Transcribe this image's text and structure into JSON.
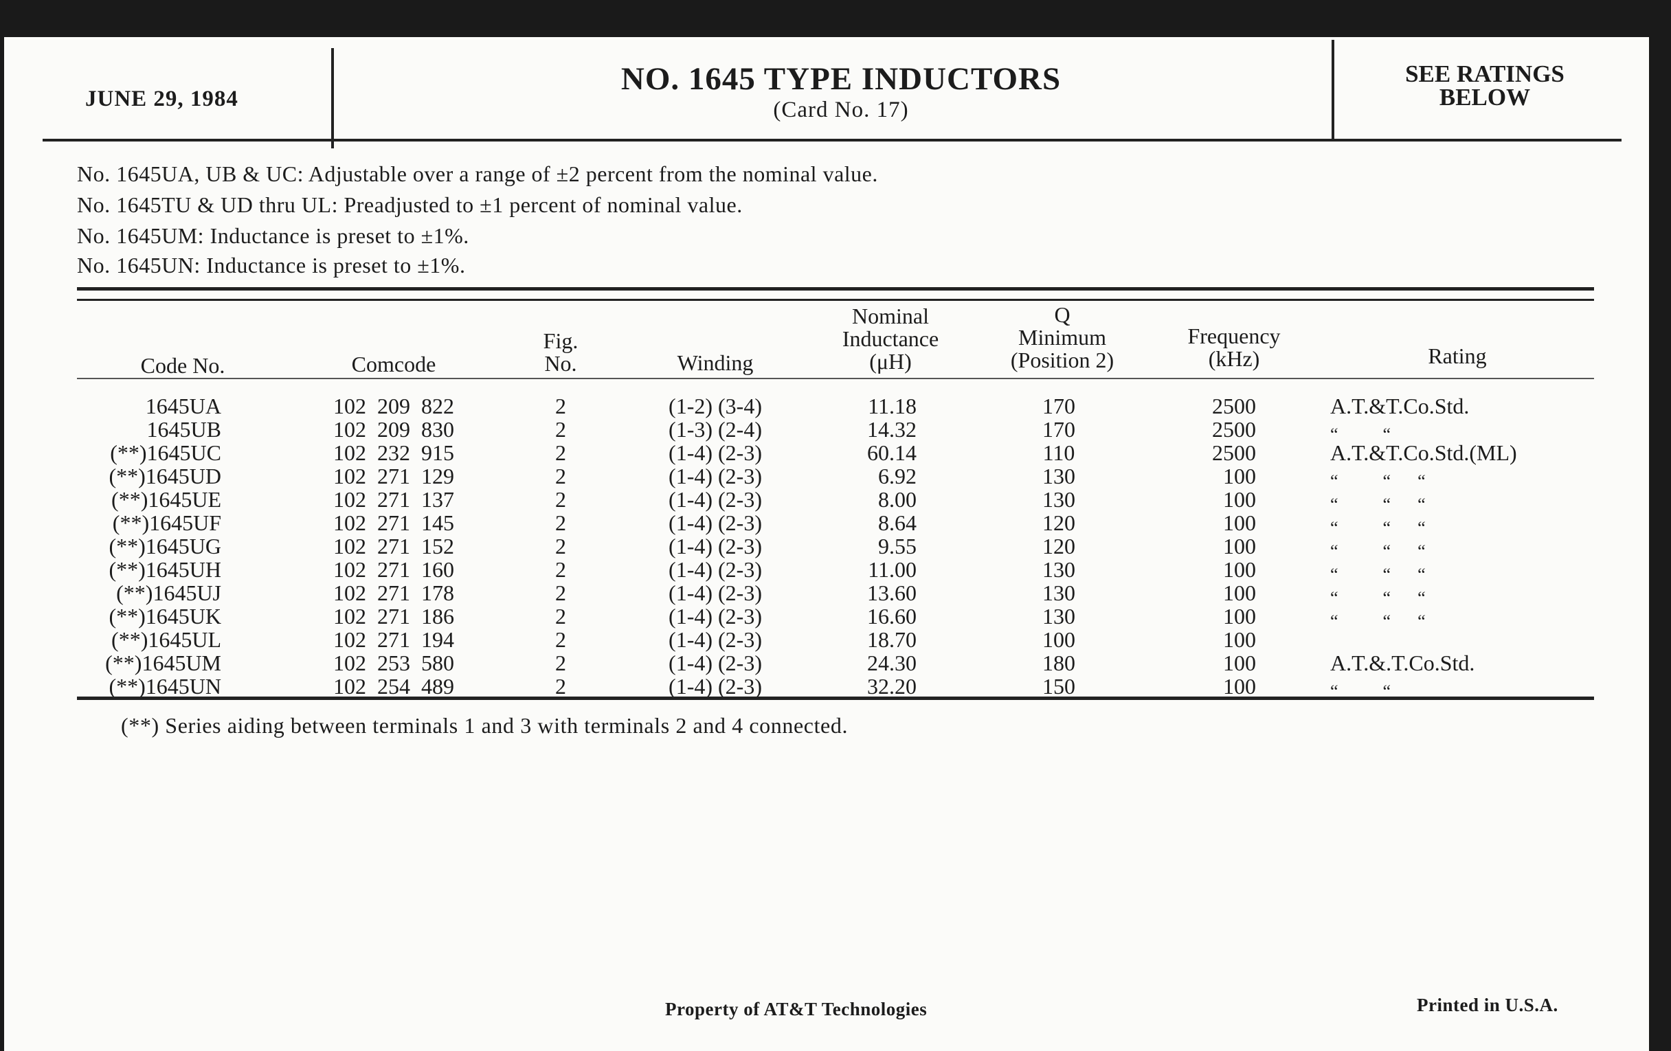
{
  "header": {
    "date": "JUNE 29, 1984",
    "title": "NO. 1645 TYPE INDUCTORS",
    "subtitle": "(Card No. 17)",
    "ratings_note_line1": "SEE RATINGS",
    "ratings_note_line2": "BELOW"
  },
  "notes": [
    "No. 1645UA, UB & UC: Adjustable over a range of ±2 percent from the nominal value.",
    "No. 1645TU & UD thru UL: Preadjusted to ±1 percent of nominal value.",
    "No. 1645UM:  Inductance is preset to ±1%.",
    "No. 1645UN: Inductance is preset to ±1%."
  ],
  "table": {
    "headers": {
      "code": "Code No.",
      "comcode": "Comcode",
      "fig_1": "Fig.",
      "fig_2": "No.",
      "winding": "Winding",
      "ind_1": "Nominal",
      "ind_2": "Inductance",
      "ind_3": "(μH)",
      "q_1": "Q",
      "q_2": "Minimum",
      "q_3": "(Position 2)",
      "freq_1": "Frequency",
      "freq_2": "(kHz)",
      "rating": "Rating"
    },
    "rows": [
      {
        "code": "1645UA",
        "comcode": "102  209  822",
        "fig": "2",
        "winding": "(1-2) (3-4)",
        "inductance": "11.18",
        "q": "170",
        "freq": "2500",
        "rating": "A.T.&T.Co.Std."
      },
      {
        "code": "1645UB",
        "comcode": "102  209  830",
        "fig": "2",
        "winding": "(1-3) (2-4)",
        "inductance": "14.32",
        "q": "170",
        "freq": "2500",
        "rating": "“          “"
      },
      {
        "code": "(**)1645UC",
        "comcode": "102  232  915",
        "fig": "2",
        "winding": "(1-4) (2-3)",
        "inductance": "60.14",
        "q": "110",
        "freq": "2500",
        "rating": "A.T.&T.Co.Std.(ML)"
      },
      {
        "code": "(**)1645UD",
        "comcode": "102  271  129",
        "fig": "2",
        "winding": "(1-4) (2-3)",
        "inductance": "6.92",
        "q": "130",
        "freq": "100",
        "rating": "“          “      “"
      },
      {
        "code": "(**)1645UE",
        "comcode": "102  271  137",
        "fig": "2",
        "winding": "(1-4) (2-3)",
        "inductance": "8.00",
        "q": "130",
        "freq": "100",
        "rating": "“          “      “"
      },
      {
        "code": "(**)1645UF",
        "comcode": "102  271  145",
        "fig": "2",
        "winding": "(1-4) (2-3)",
        "inductance": "8.64",
        "q": "120",
        "freq": "100",
        "rating": "“          “      “"
      },
      {
        "code": "(**)1645UG",
        "comcode": "102  271  152",
        "fig": "2",
        "winding": "(1-4) (2-3)",
        "inductance": "9.55",
        "q": "120",
        "freq": "100",
        "rating": "“          “      “"
      },
      {
        "code": "(**)1645UH",
        "comcode": "102  271  160",
        "fig": "2",
        "winding": "(1-4) (2-3)",
        "inductance": "11.00",
        "q": "130",
        "freq": "100",
        "rating": "“          “      “"
      },
      {
        "code": "(**)1645UJ",
        "comcode": "102  271  178",
        "fig": "2",
        "winding": "(1-4) (2-3)",
        "inductance": "13.60",
        "q": "130",
        "freq": "100",
        "rating": "“          “      “"
      },
      {
        "code": "(**)1645UK",
        "comcode": "102  271  186",
        "fig": "2",
        "winding": "(1-4) (2-3)",
        "inductance": "16.60",
        "q": "130",
        "freq": "100",
        "rating": "“          “      “"
      },
      {
        "code": "(**)1645UL",
        "comcode": "102  271  194",
        "fig": "2",
        "winding": "(1-4) (2-3)",
        "inductance": "18.70",
        "q": "100",
        "freq": "100",
        "rating": ""
      },
      {
        "code": "(**)1645UM",
        "comcode": "102  253  580",
        "fig": "2",
        "winding": "(1-4) (2-3)",
        "inductance": "24.30",
        "q": "180",
        "freq": "100",
        "rating": "A.T.&.T.Co.Std."
      },
      {
        "code": "(**)1645UN",
        "comcode": "102  254  489",
        "fig": "2",
        "winding": "(1-4) (2-3)",
        "inductance": "32.20",
        "q": "150",
        "freq": "100",
        "rating": "“          “"
      }
    ]
  },
  "footnote": "(**) Series aiding between terminals 1 and 3 with terminals 2 and 4 connected.",
  "footer": {
    "property": "Property of AT&T Technologies",
    "printed": "Printed in U.S.A."
  }
}
